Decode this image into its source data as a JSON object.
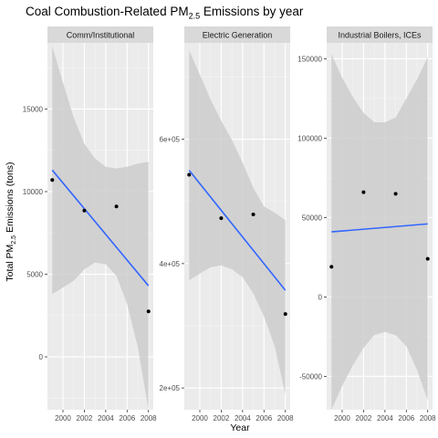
{
  "chart_data": {
    "type": "scatter",
    "title_main": "Coal Combustion-Related PM",
    "title_sub": "2.5",
    "title_rest": " Emissions by year",
    "xlabel": "Year",
    "ylabel_main": "Total PM",
    "ylabel_sub": "2.5",
    "ylabel_rest": " Emissions (tons)",
    "grid": true,
    "smooth": "linear fit with confidence band",
    "colors": {
      "panel_bg": "#ebebeb",
      "strip_bg": "#d9d9d9",
      "grid_major": "#ffffff",
      "grid_minor": "#f5f5f5",
      "ribbon": "#cccccc",
      "fit_line": "#3366ff",
      "point": "#000000"
    },
    "x_ticks": [
      2000,
      2002,
      2004,
      2006,
      2008
    ],
    "x_tick_labels": [
      "2000",
      "2002",
      "2004",
      "2006",
      "2008"
    ],
    "panels": [
      {
        "strip": "Comm/Institutional",
        "xlim": [
          1998.55,
          2008.45
        ],
        "ylim": [
          -3200,
          19000
        ],
        "y_ticks": [
          0,
          5000,
          10000,
          15000
        ],
        "y_tick_labels": [
          "0",
          "5000",
          "10000",
          "15000"
        ],
        "points": [
          {
            "x": 1999,
            "y": 10700
          },
          {
            "x": 2002,
            "y": 8850
          },
          {
            "x": 2005,
            "y": 9100
          },
          {
            "x": 2008,
            "y": 2750
          }
        ],
        "fit": {
          "x": [
            1999,
            2008
          ],
          "y": [
            11300,
            4300
          ]
        },
        "band": {
          "x": [
            1999,
            2000,
            2001,
            2002,
            2003,
            2004,
            2005,
            2006,
            2007,
            2008
          ],
          "lower": [
            3800,
            4200,
            4600,
            5300,
            5700,
            5600,
            4900,
            3200,
            600,
            -3200
          ],
          "upper": [
            18800,
            16600,
            14500,
            12900,
            12000,
            11500,
            11400,
            11500,
            11700,
            11800
          ]
        }
      },
      {
        "strip": "Electric Generation",
        "xlim": [
          1998.55,
          2008.45
        ],
        "ylim": [
          165000,
          755000
        ],
        "y_ticks": [
          200000,
          400000,
          600000
        ],
        "y_tick_labels": [
          "2e+05",
          "4e+05",
          "6e+05"
        ],
        "points": [
          {
            "x": 1999,
            "y": 543000
          },
          {
            "x": 2002,
            "y": 473000
          },
          {
            "x": 2005,
            "y": 479000
          },
          {
            "x": 2008,
            "y": 319000
          }
        ],
        "fit": {
          "x": [
            1999,
            2008
          ],
          "y": [
            550000,
            357000
          ]
        },
        "band": {
          "x": [
            1999,
            2000,
            2001,
            2002,
            2003,
            2004,
            2005,
            2006,
            2007,
            2008
          ],
          "lower": [
            373000,
            384000,
            394000,
            397000,
            391000,
            378000,
            352000,
            315000,
            267000,
            190000
          ],
          "upper": [
            743000,
            704000,
            664000,
            630000,
            599000,
            562000,
            522000,
            492000,
            482000,
            470000
          ]
        }
      },
      {
        "strip": "Industrial Boilers, ICEs",
        "xlim": [
          1998.55,
          2008.45
        ],
        "ylim": [
          -71000,
          160000
        ],
        "y_ticks": [
          -50000,
          0,
          50000,
          100000,
          150000
        ],
        "y_tick_labels": [
          "-50000",
          "0",
          "50000",
          "100000",
          "150000"
        ],
        "points": [
          {
            "x": 1999,
            "y": 19000
          },
          {
            "x": 2002,
            "y": 66000
          },
          {
            "x": 2005,
            "y": 65000
          },
          {
            "x": 2008,
            "y": 24000
          }
        ],
        "fit": {
          "x": [
            1999,
            2008
          ],
          "y": [
            41000,
            46000
          ]
        },
        "band": {
          "x": [
            1999,
            2000,
            2001,
            2002,
            2003,
            2004,
            2005,
            2006,
            2007,
            2008
          ],
          "lower": [
            -71000,
            -56000,
            -43000,
            -32000,
            -24000,
            -22000,
            -24000,
            -31000,
            -46000,
            -65000
          ],
          "upper": [
            153000,
            138000,
            126000,
            116000,
            110000,
            110000,
            113000,
            125000,
            137000,
            151000
          ]
        }
      }
    ]
  }
}
